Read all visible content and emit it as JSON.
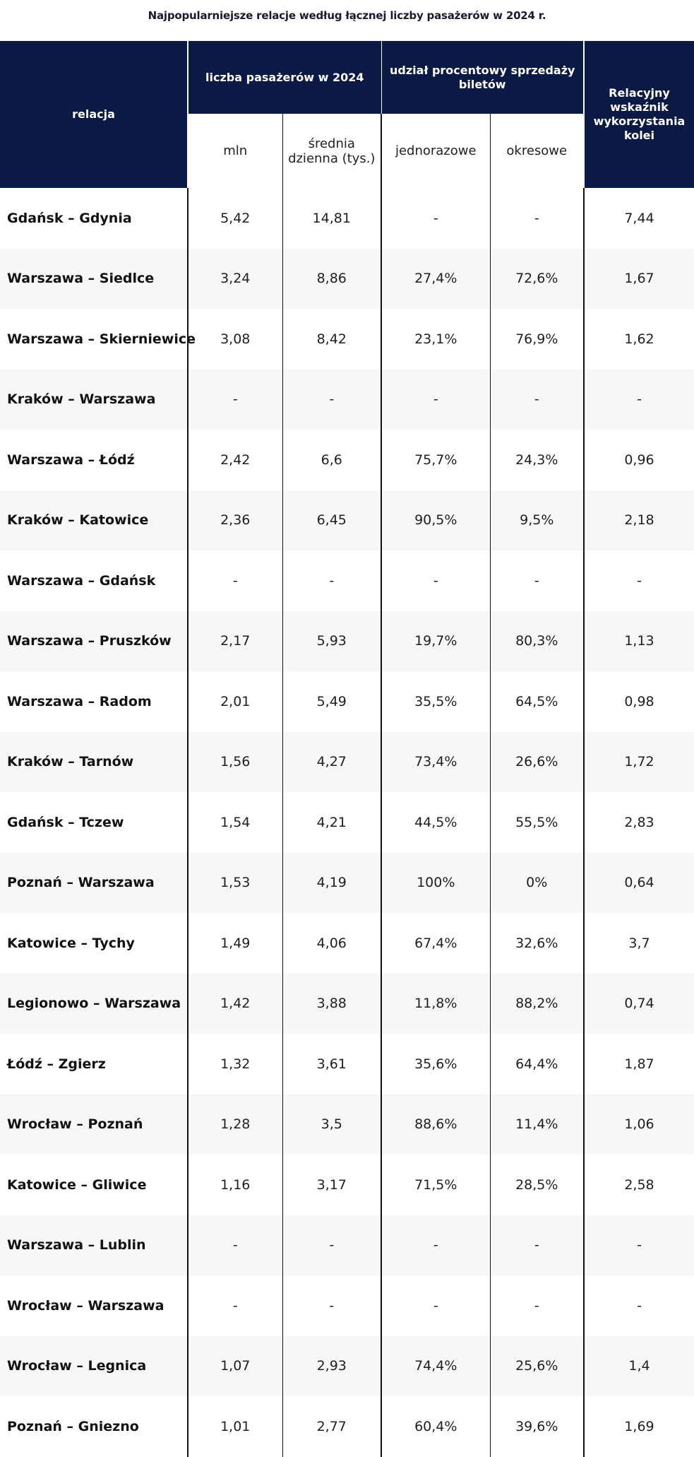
{
  "title": "Najpopularniejsze relacje według łącznej liczby pasażerów w 2024 r.",
  "header": {
    "relacja": "relacja",
    "group_passengers": "liczba pasażerów w 2024",
    "group_share": "udział procentowy sprzedaży biletów",
    "wskaznik": "Relacyjny wskaźnik wykorzystania kolei",
    "mln": "mln",
    "srednia": "średnia dzienna (tys.)",
    "jednorazowe": "jednorazowe",
    "okresowe": "okresowe"
  },
  "rows": [
    {
      "relacja": "Gdańsk – Gdynia",
      "mln": "5,42",
      "srednia": "14,81",
      "jednorazowe": "-",
      "okresowe": "-",
      "wskaznik": "7,44"
    },
    {
      "relacja": "Warszawa – Siedlce",
      "mln": "3,24",
      "srednia": "8,86",
      "jednorazowe": "27,4%",
      "okresowe": "72,6%",
      "wskaznik": "1,67"
    },
    {
      "relacja": "Warszawa – Skierniewice",
      "mln": "3,08",
      "srednia": "8,42",
      "jednorazowe": "23,1%",
      "okresowe": "76,9%",
      "wskaznik": "1,62"
    },
    {
      "relacja": "Kraków – Warszawa",
      "mln": "-",
      "srednia": "-",
      "jednorazowe": "-",
      "okresowe": "-",
      "wskaznik": "-"
    },
    {
      "relacja": "Warszawa – Łódź",
      "mln": "2,42",
      "srednia": "6,6",
      "jednorazowe": "75,7%",
      "okresowe": "24,3%",
      "wskaznik": "0,96"
    },
    {
      "relacja": "Kraków – Katowice",
      "mln": "2,36",
      "srednia": "6,45",
      "jednorazowe": "90,5%",
      "okresowe": "9,5%",
      "wskaznik": "2,18"
    },
    {
      "relacja": "Warszawa – Gdańsk",
      "mln": "-",
      "srednia": "-",
      "jednorazowe": "-",
      "okresowe": "-",
      "wskaznik": "-"
    },
    {
      "relacja": "Warszawa – Pruszków",
      "mln": "2,17",
      "srednia": "5,93",
      "jednorazowe": "19,7%",
      "okresowe": "80,3%",
      "wskaznik": "1,13"
    },
    {
      "relacja": "Warszawa – Radom",
      "mln": "2,01",
      "srednia": "5,49",
      "jednorazowe": "35,5%",
      "okresowe": "64,5%",
      "wskaznik": "0,98"
    },
    {
      "relacja": "Kraków – Tarnów",
      "mln": "1,56",
      "srednia": "4,27",
      "jednorazowe": "73,4%",
      "okresowe": "26,6%",
      "wskaznik": "1,72"
    },
    {
      "relacja": "Gdańsk – Tczew",
      "mln": "1,54",
      "srednia": "4,21",
      "jednorazowe": "44,5%",
      "okresowe": "55,5%",
      "wskaznik": "2,83"
    },
    {
      "relacja": "Poznań – Warszawa",
      "mln": "1,53",
      "srednia": "4,19",
      "jednorazowe": "100%",
      "okresowe": "0%",
      "wskaznik": "0,64"
    },
    {
      "relacja": "Katowice – Tychy",
      "mln": "1,49",
      "srednia": "4,06",
      "jednorazowe": "67,4%",
      "okresowe": "32,6%",
      "wskaznik": "3,7"
    },
    {
      "relacja": "Legionowo – Warszawa",
      "mln": "1,42",
      "srednia": "3,88",
      "jednorazowe": "11,8%",
      "okresowe": "88,2%",
      "wskaznik": "0,74"
    },
    {
      "relacja": "Łódź – Zgierz",
      "mln": "1,32",
      "srednia": "3,61",
      "jednorazowe": "35,6%",
      "okresowe": "64,4%",
      "wskaznik": "1,87"
    },
    {
      "relacja": "Wrocław – Poznań",
      "mln": "1,28",
      "srednia": "3,5",
      "jednorazowe": "88,6%",
      "okresowe": "11,4%",
      "wskaznik": "1,06"
    },
    {
      "relacja": "Katowice – Gliwice",
      "mln": "1,16",
      "srednia": "3,17",
      "jednorazowe": "71,5%",
      "okresowe": "28,5%",
      "wskaznik": "2,58"
    },
    {
      "relacja": "Warszawa – Lublin",
      "mln": "-",
      "srednia": "-",
      "jednorazowe": "-",
      "okresowe": "-",
      "wskaznik": "-"
    },
    {
      "relacja": "Wrocław – Warszawa",
      "mln": "-",
      "srednia": "-",
      "jednorazowe": "-",
      "okresowe": "-",
      "wskaznik": "-"
    },
    {
      "relacja": "Wrocław – Legnica",
      "mln": "1,07",
      "srednia": "2,93",
      "jednorazowe": "74,4%",
      "okresowe": "25,6%",
      "wskaznik": "1,4"
    },
    {
      "relacja": "Poznań – Gniezno",
      "mln": "1,01",
      "srednia": "2,77",
      "jednorazowe": "60,4%",
      "okresowe": "39,6%",
      "wskaznik": "1,69"
    }
  ]
}
